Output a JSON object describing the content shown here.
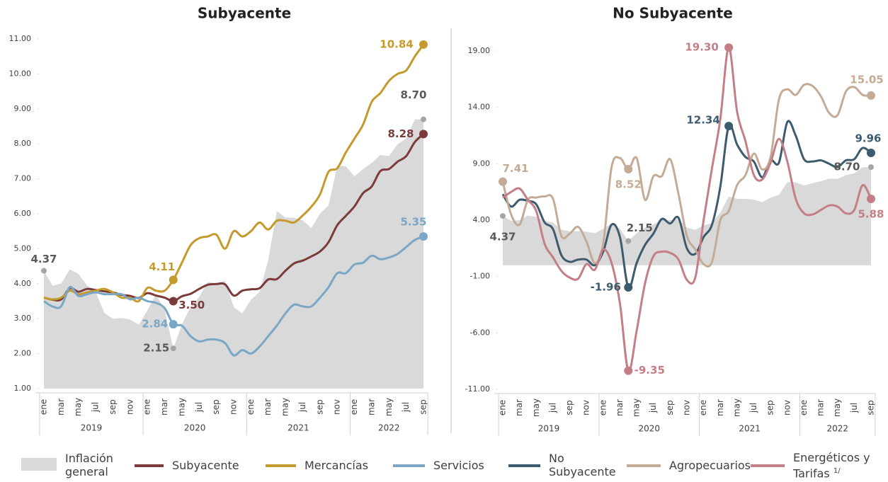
{
  "chart_data": [
    {
      "type": "line",
      "title": "Subyacente",
      "categories": [
        "ene",
        null,
        "mar",
        null,
        "may",
        null,
        "jul",
        null,
        "sep",
        null,
        "nov",
        null,
        "ene",
        null,
        "mar",
        null,
        "may",
        null,
        "jul",
        null,
        "sep",
        null,
        "nov",
        null,
        "ene",
        null,
        "mar",
        null,
        "may",
        null,
        "jul",
        null,
        "sep",
        null,
        "nov",
        null,
        "ene",
        null,
        "mar",
        null,
        "may",
        null,
        "jul",
        null,
        "sep"
      ],
      "years": [
        "2019",
        "2020",
        "2021",
        "2022"
      ],
      "ylim": [
        1,
        11
      ],
      "yticks": [
        {
          "value": 1,
          "label": "1.00"
        },
        {
          "value": 2,
          "label": "2.00"
        },
        {
          "value": 3,
          "label": "3.00"
        },
        {
          "value": 4,
          "label": "4.00"
        },
        {
          "value": 5,
          "label": "5.00"
        },
        {
          "value": 6,
          "label": "6.00"
        },
        {
          "value": 7,
          "label": "7.00"
        },
        {
          "value": 8,
          "label": "8.00"
        },
        {
          "value": 9,
          "label": "9.00"
        },
        {
          "value": 10,
          "label": "10.00"
        },
        {
          "value": 11,
          "label": "11.00"
        }
      ],
      "grid": false,
      "series": [
        {
          "name": "Inflación general",
          "kind": "area",
          "color": "#d9d9d9",
          "label_color": "#595959",
          "values": [
            4.37,
            3.94,
            4.0,
            4.41,
            4.28,
            3.95,
            3.78,
            3.16,
            3.0,
            3.02,
            2.97,
            2.83,
            3.24,
            3.7,
            3.25,
            2.15,
            2.84,
            3.33,
            3.62,
            4.05,
            4.01,
            4.09,
            3.33,
            3.15,
            3.54,
            3.76,
            4.67,
            6.08,
            5.89,
            5.88,
            5.81,
            5.59,
            6.0,
            6.24,
            7.37,
            7.36,
            7.07,
            7.28,
            7.45,
            7.68,
            7.65,
            7.99,
            8.15,
            8.7,
            8.7
          ],
          "value_labels": [
            "4.37",
            null,
            null,
            null,
            null,
            null,
            null,
            null,
            null,
            null,
            null,
            null,
            null,
            null,
            null,
            "2.15",
            null,
            null,
            null,
            null,
            null,
            null,
            null,
            null,
            null,
            null,
            null,
            null,
            null,
            null,
            null,
            null,
            null,
            null,
            null,
            null,
            null,
            null,
            null,
            null,
            null,
            null,
            null,
            null,
            "8.70"
          ]
        },
        {
          "name": "Subyacente",
          "kind": "line",
          "color": "#7b3b3b",
          "values": [
            3.6,
            3.54,
            3.55,
            3.87,
            3.77,
            3.85,
            3.82,
            3.78,
            3.75,
            3.68,
            3.65,
            3.59,
            3.73,
            3.66,
            3.6,
            3.5,
            3.64,
            3.71,
            3.85,
            3.97,
            3.99,
            3.98,
            3.66,
            3.8,
            3.84,
            3.87,
            4.12,
            4.13,
            4.37,
            4.58,
            4.66,
            4.78,
            4.92,
            5.19,
            5.67,
            5.94,
            6.21,
            6.59,
            6.78,
            7.22,
            7.28,
            7.49,
            7.65,
            8.05,
            8.28
          ],
          "value_labels": [
            null,
            null,
            null,
            null,
            null,
            null,
            null,
            null,
            null,
            null,
            null,
            null,
            null,
            null,
            null,
            "3.50",
            null,
            null,
            null,
            null,
            null,
            null,
            null,
            null,
            null,
            null,
            null,
            null,
            null,
            null,
            null,
            null,
            null,
            null,
            null,
            null,
            null,
            null,
            null,
            null,
            null,
            null,
            null,
            null,
            "8.28"
          ]
        },
        {
          "name": "Mercancías",
          "kind": "line",
          "color": "#c49a2c",
          "values": [
            3.6,
            3.55,
            3.6,
            3.8,
            3.7,
            3.75,
            3.8,
            3.85,
            3.75,
            3.6,
            3.6,
            3.5,
            3.88,
            3.8,
            3.8,
            4.11,
            4.6,
            5.1,
            5.3,
            5.35,
            5.4,
            5.0,
            5.5,
            5.35,
            5.5,
            5.75,
            5.55,
            5.8,
            5.8,
            5.75,
            5.95,
            6.2,
            6.55,
            7.2,
            7.3,
            7.75,
            8.15,
            8.55,
            9.2,
            9.45,
            9.8,
            10.0,
            10.1,
            10.5,
            10.84
          ],
          "value_labels": [
            null,
            null,
            null,
            null,
            null,
            null,
            null,
            null,
            null,
            null,
            null,
            null,
            null,
            null,
            null,
            "4.11",
            null,
            null,
            null,
            null,
            null,
            null,
            null,
            null,
            null,
            null,
            null,
            null,
            null,
            null,
            null,
            null,
            null,
            null,
            null,
            null,
            null,
            null,
            null,
            null,
            null,
            null,
            null,
            null,
            "10.84"
          ]
        },
        {
          "name": "Servicios",
          "kind": "line",
          "color": "#7ba7c7",
          "values": [
            3.5,
            3.35,
            3.35,
            3.9,
            3.65,
            3.7,
            3.75,
            3.7,
            3.7,
            3.7,
            3.55,
            3.6,
            3.5,
            3.45,
            3.3,
            2.84,
            2.8,
            2.5,
            2.35,
            2.4,
            2.4,
            2.3,
            1.95,
            2.1,
            2.0,
            2.2,
            2.5,
            2.8,
            3.15,
            3.4,
            3.35,
            3.35,
            3.6,
            3.9,
            4.3,
            4.3,
            4.55,
            4.6,
            4.8,
            4.7,
            4.75,
            4.85,
            5.05,
            5.25,
            5.35
          ],
          "value_labels": [
            null,
            null,
            null,
            null,
            null,
            null,
            null,
            null,
            null,
            null,
            null,
            null,
            null,
            null,
            null,
            "2.84",
            null,
            null,
            null,
            null,
            null,
            null,
            null,
            null,
            null,
            null,
            null,
            null,
            null,
            null,
            null,
            null,
            null,
            null,
            null,
            null,
            null,
            null,
            null,
            null,
            null,
            null,
            null,
            null,
            "5.35"
          ]
        }
      ]
    },
    {
      "type": "line",
      "title": "No Subyacente",
      "categories": [
        "ene",
        null,
        "mar",
        null,
        "may",
        null,
        "jul",
        null,
        "sep",
        null,
        "nov",
        null,
        "ene",
        null,
        "mar",
        null,
        "may",
        null,
        "jul",
        null,
        "sep",
        null,
        "nov",
        null,
        "ene",
        null,
        "mar",
        null,
        "may",
        null,
        "jul",
        null,
        "sep",
        null,
        "nov",
        null,
        "ene",
        null,
        "mar",
        null,
        "may",
        null,
        "jul",
        null,
        "sep"
      ],
      "years": [
        "2019",
        "2020",
        "2021",
        "2022"
      ],
      "ylim": [
        -11,
        19
      ],
      "yticks": [
        {
          "value": -11,
          "label": "-11.00"
        },
        {
          "value": -6,
          "label": "-6.00"
        },
        {
          "value": -1,
          "label": "-1.00"
        },
        {
          "value": 4,
          "label": "4.00"
        },
        {
          "value": 9,
          "label": "9.00"
        },
        {
          "value": 14,
          "label": "14.00"
        },
        {
          "value": 19,
          "label": "19.00"
        }
      ],
      "grid": false,
      "series": [
        {
          "kind": "area",
          "color": "#d9d9d9",
          "label_color": "#595959",
          "values": [
            4.37,
            3.94,
            4.0,
            4.41,
            4.28,
            3.95,
            3.78,
            3.16,
            3.0,
            3.02,
            2.97,
            2.83,
            3.24,
            3.7,
            3.25,
            2.15,
            2.84,
            3.33,
            3.62,
            4.05,
            4.01,
            4.09,
            3.33,
            3.15,
            3.54,
            3.76,
            4.67,
            6.08,
            5.89,
            5.88,
            5.81,
            5.59,
            6.0,
            6.24,
            7.37,
            7.36,
            7.07,
            7.28,
            7.45,
            7.68,
            7.65,
            7.99,
            8.15,
            8.7,
            8.7
          ],
          "value_labels": [
            "4.37",
            null,
            null,
            null,
            null,
            null,
            null,
            null,
            null,
            null,
            null,
            null,
            null,
            null,
            null,
            "2.15",
            null,
            null,
            null,
            null,
            null,
            null,
            null,
            null,
            null,
            null,
            null,
            null,
            null,
            null,
            null,
            null,
            null,
            null,
            null,
            null,
            null,
            null,
            null,
            null,
            null,
            null,
            null,
            null,
            "8.70"
          ]
        },
        {
          "name": "No Subyacente",
          "kind": "line",
          "color": "#3d5b6e",
          "values": [
            6.3,
            5.2,
            5.8,
            5.7,
            5.4,
            3.8,
            3.2,
            0.9,
            0.3,
            0.5,
            0.5,
            0.0,
            1.2,
            3.6,
            2.5,
            -1.96,
            0.2,
            1.8,
            2.8,
            4.1,
            3.7,
            4.2,
            1.5,
            1.0,
            2.5,
            3.6,
            7.0,
            12.34,
            10.7,
            9.6,
            9.2,
            7.8,
            9.3,
            9.1,
            12.7,
            11.5,
            9.4,
            9.2,
            9.3,
            9.0,
            8.7,
            9.3,
            9.4,
            10.4,
            9.96
          ],
          "value_labels": [
            null,
            null,
            null,
            null,
            null,
            null,
            null,
            null,
            null,
            null,
            null,
            null,
            null,
            null,
            null,
            "-1.96",
            null,
            null,
            null,
            null,
            null,
            null,
            null,
            null,
            null,
            null,
            null,
            "12.34",
            null,
            null,
            null,
            null,
            null,
            null,
            null,
            null,
            null,
            null,
            null,
            null,
            null,
            null,
            null,
            null,
            "9.96"
          ]
        },
        {
          "name": "Agropecuarios",
          "kind": "line",
          "color": "#c4ab96",
          "values": [
            7.41,
            4.5,
            3.6,
            5.8,
            6.0,
            6.1,
            5.9,
            2.6,
            2.8,
            3.4,
            2.1,
            0.2,
            1.9,
            8.7,
            9.5,
            8.52,
            9.5,
            5.8,
            7.9,
            7.9,
            9.4,
            6.3,
            2.6,
            1.4,
            0.1,
            0.3,
            4.0,
            4.8,
            7.1,
            8.0,
            9.9,
            8.5,
            9.6,
            14.7,
            15.6,
            15.1,
            16.0,
            15.9,
            15.0,
            13.5,
            13.3,
            15.4,
            15.8,
            15.1,
            15.05
          ],
          "value_labels": [
            "7.41",
            null,
            null,
            null,
            null,
            null,
            null,
            null,
            null,
            null,
            null,
            null,
            null,
            null,
            null,
            "8.52",
            null,
            null,
            null,
            null,
            null,
            null,
            null,
            null,
            null,
            null,
            null,
            null,
            null,
            null,
            null,
            null,
            null,
            null,
            null,
            null,
            null,
            null,
            null,
            null,
            null,
            null,
            null,
            null,
            "15.05"
          ]
        },
        {
          "name": "Energéticos y Tarifas",
          "footnote": "1/",
          "kind": "line",
          "color": "#c47f86",
          "values": [
            6.0,
            6.5,
            6.8,
            5.8,
            4.8,
            1.9,
            0.7,
            -0.5,
            -1.1,
            -1.2,
            0.1,
            -0.4,
            1.4,
            0.2,
            -3.4,
            -9.35,
            -5.8,
            -1.6,
            0.8,
            1.2,
            1.1,
            0.5,
            -1.3,
            -1.1,
            4.0,
            8.6,
            13.0,
            19.3,
            13.6,
            11.0,
            8.0,
            7.6,
            9.1,
            11.2,
            9.2,
            5.9,
            4.6,
            4.5,
            4.9,
            5.3,
            5.2,
            4.6,
            4.9,
            7.1,
            5.88
          ],
          "value_labels": [
            null,
            null,
            null,
            null,
            null,
            null,
            null,
            null,
            null,
            null,
            null,
            null,
            null,
            null,
            null,
            "-9.35",
            null,
            null,
            null,
            null,
            null,
            null,
            null,
            null,
            null,
            null,
            null,
            "19.30",
            null,
            null,
            null,
            null,
            null,
            null,
            null,
            null,
            null,
            null,
            null,
            null,
            null,
            null,
            null,
            null,
            "5.88"
          ]
        }
      ]
    }
  ]
}
